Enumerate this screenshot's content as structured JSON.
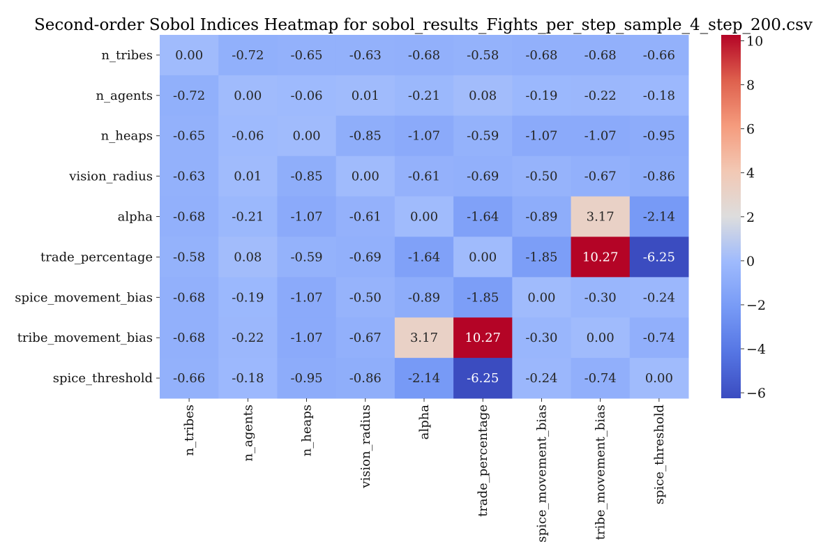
{
  "chart_data": {
    "type": "heatmap",
    "title": "Second-order Sobol Indices Heatmap for sobol_results_Fights_per_step_sample_4_step_200.csv",
    "row_labels": [
      "n_tribes",
      "n_agents",
      "n_heaps",
      "vision_radius",
      "alpha",
      "trade_percentage",
      "spice_movement_bias",
      "tribe_movement_bias",
      "spice_threshold"
    ],
    "col_labels": [
      "n_tribes",
      "n_agents",
      "n_heaps",
      "vision_radius",
      "alpha",
      "trade_percentage",
      "spice_movement_bias",
      "tribe_movement_bias",
      "spice_threshold"
    ],
    "values": [
      [
        0.0,
        -0.72,
        -0.65,
        -0.63,
        -0.68,
        -0.58,
        -0.68,
        -0.68,
        -0.66
      ],
      [
        -0.72,
        0.0,
        -0.06,
        0.01,
        -0.21,
        0.08,
        -0.19,
        -0.22,
        -0.18
      ],
      [
        -0.65,
        -0.06,
        0.0,
        -0.85,
        -1.07,
        -0.59,
        -1.07,
        -1.07,
        -0.95
      ],
      [
        -0.63,
        0.01,
        -0.85,
        0.0,
        -0.61,
        -0.69,
        -0.5,
        -0.67,
        -0.86
      ],
      [
        -0.68,
        -0.21,
        -1.07,
        -0.61,
        0.0,
        -1.64,
        -0.89,
        3.17,
        -2.14
      ],
      [
        -0.58,
        0.08,
        -0.59,
        -0.69,
        -1.64,
        0.0,
        -1.85,
        10.27,
        -6.25
      ],
      [
        -0.68,
        -0.19,
        -1.07,
        -0.5,
        -0.89,
        -1.85,
        0.0,
        -0.3,
        -0.24
      ],
      [
        -0.68,
        -0.22,
        -1.07,
        -0.67,
        3.17,
        10.27,
        -0.3,
        0.0,
        -0.74
      ],
      [
        -0.66,
        -0.18,
        -0.95,
        -0.86,
        -2.14,
        -6.25,
        -0.24,
        -0.74,
        0.0
      ]
    ],
    "colormap": "coolwarm",
    "vmin": -6.25,
    "vmax": 10.27,
    "colorbar_ticks": [
      -6,
      -4,
      -2,
      0,
      2,
      4,
      6,
      8,
      10
    ],
    "colorbar_tick_labels": [
      "−6",
      "−4",
      "−2",
      "0",
      "2",
      "4",
      "6",
      "8",
      "10"
    ],
    "annotation_format": "0.00"
  }
}
